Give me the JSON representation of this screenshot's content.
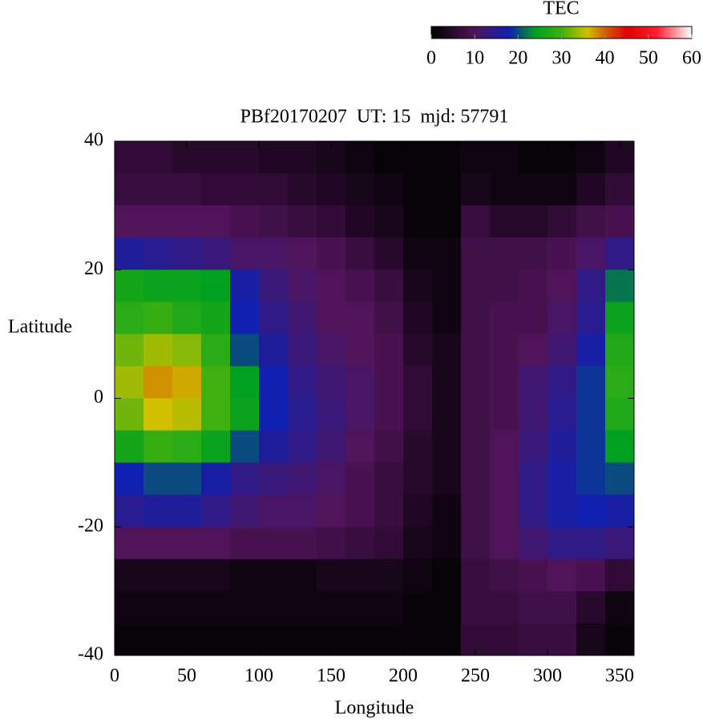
{
  "chart_data": {
    "type": "heatmap",
    "title": "PBf20170207  UT: 15  mjd: 57791",
    "xlabel": "Longitude",
    "ylabel": "Latitude",
    "xlim": [
      0,
      360
    ],
    "xticks": [
      0,
      50,
      100,
      150,
      200,
      250,
      300,
      350
    ],
    "ylim": [
      -40,
      40
    ],
    "yticks": [
      -40,
      -20,
      0,
      20,
      40
    ],
    "xbins": [
      0,
      20,
      40,
      60,
      80,
      100,
      120,
      140,
      160,
      180,
      200,
      220,
      240,
      260,
      280,
      300,
      320,
      340,
      360
    ],
    "ybins": [
      40,
      35,
      30,
      25,
      20,
      15,
      10,
      5,
      0,
      -5,
      -10,
      -15,
      -20,
      -25,
      -30,
      -35,
      -40
    ],
    "z": [
      [
        6,
        6,
        5,
        5,
        5,
        4,
        4,
        3,
        2,
        1,
        1,
        1,
        2,
        2,
        1,
        1,
        2,
        4
      ],
      [
        7,
        7,
        7,
        6,
        6,
        6,
        5,
        4,
        3,
        2,
        1,
        1,
        3,
        2,
        2,
        2,
        4,
        6
      ],
      [
        10,
        10,
        10,
        10,
        9,
        8,
        7,
        6,
        4,
        3,
        1,
        1,
        7,
        5,
        5,
        6,
        8,
        9
      ],
      [
        16,
        15,
        14,
        13,
        11,
        11,
        10,
        9,
        7,
        5,
        2,
        2,
        8,
        8,
        8,
        9,
        11,
        14
      ],
      [
        26,
        25,
        25,
        24,
        17,
        13,
        11,
        10,
        9,
        7,
        3,
        2,
        8,
        8,
        9,
        10,
        14,
        22
      ],
      [
        28,
        29,
        27,
        26,
        18,
        14,
        12,
        10,
        10,
        8,
        4,
        2,
        8,
        9,
        9,
        11,
        15,
        25
      ],
      [
        32,
        34,
        33,
        28,
        20,
        16,
        13,
        11,
        10,
        9,
        5,
        3,
        8,
        9,
        10,
        12,
        17,
        27
      ],
      [
        34,
        38,
        37,
        30,
        24,
        18,
        14,
        12,
        11,
        9,
        6,
        3,
        8,
        9,
        12,
        14,
        19,
        28
      ],
      [
        32,
        36,
        35,
        30,
        25,
        18,
        15,
        13,
        11,
        9,
        6,
        3,
        8,
        9,
        12,
        15,
        19,
        27
      ],
      [
        26,
        29,
        28,
        25,
        20,
        16,
        14,
        12,
        10,
        8,
        5,
        3,
        8,
        10,
        13,
        16,
        19,
        24
      ],
      [
        18,
        20,
        20,
        17,
        14,
        13,
        12,
        11,
        9,
        7,
        5,
        3,
        8,
        10,
        14,
        17,
        19,
        20
      ],
      [
        15,
        16,
        16,
        14,
        12,
        11,
        11,
        10,
        9,
        7,
        4,
        2,
        8,
        10,
        14,
        17,
        18,
        17
      ],
      [
        10,
        10,
        10,
        10,
        9,
        9,
        9,
        8,
        7,
        6,
        3,
        2,
        8,
        10,
        12,
        14,
        14,
        13
      ],
      [
        3,
        3,
        3,
        3,
        2,
        2,
        2,
        3,
        3,
        3,
        2,
        1,
        7,
        8,
        9,
        10,
        9,
        6
      ],
      [
        2,
        2,
        2,
        2,
        2,
        2,
        2,
        2,
        2,
        2,
        1,
        1,
        7,
        7,
        8,
        8,
        5,
        2
      ],
      [
        1,
        1,
        1,
        1,
        1,
        1,
        1,
        1,
        1,
        1,
        1,
        1,
        6,
        6,
        7,
        7,
        3,
        1
      ]
    ],
    "colorbar_label": "TEC",
    "clim": [
      0,
      60
    ],
    "cticks": [
      0,
      10,
      20,
      30,
      40,
      50,
      60
    ],
    "colormap": [
      {
        "value": 0,
        "color": "#000000"
      },
      {
        "value": 10,
        "color": "#50145a"
      },
      {
        "value": 18,
        "color": "#1020b0"
      },
      {
        "value": 24,
        "color": "#00a020"
      },
      {
        "value": 30,
        "color": "#40b010"
      },
      {
        "value": 36,
        "color": "#d0c000"
      },
      {
        "value": 40,
        "color": "#d06000"
      },
      {
        "value": 45,
        "color": "#e00000"
      },
      {
        "value": 52,
        "color": "#ff2030"
      },
      {
        "value": 60,
        "color": "#ffffff"
      }
    ]
  }
}
